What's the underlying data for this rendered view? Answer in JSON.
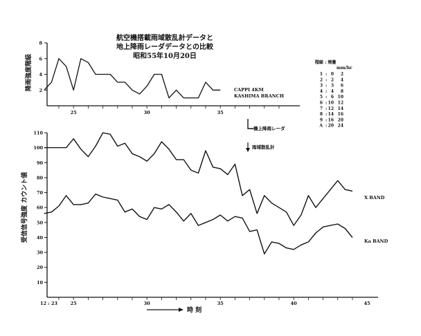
{
  "chart_data": [
    {
      "type": "line",
      "id": "top",
      "title": [
        "航空機搭載雨域散乱計データと",
        "地上降雨レーダデータとの比較",
        "昭和55年10月20日"
      ],
      "ylabel": "降雨強度階級",
      "ylim": [
        0,
        8
      ],
      "yticks": [
        "2",
        "4",
        "6",
        "8"
      ],
      "xlim": [
        23,
        40
      ],
      "xticks": [
        "25",
        "30",
        "35"
      ],
      "grid": false,
      "series": [
        {
          "name": "CAPPI 4KM KASHIMA BRANCH",
          "x": [
            23,
            23.5,
            24,
            24.5,
            25,
            25.5,
            26,
            26.5,
            27,
            27.5,
            28,
            28.5,
            29,
            29.5,
            30,
            30.5,
            31,
            31.5,
            32,
            32.5,
            33,
            33.5,
            34,
            34.5,
            35
          ],
          "values": [
            2,
            3,
            6,
            5,
            2,
            6,
            5.5,
            4,
            4,
            4,
            3,
            3,
            2,
            1.5,
            2.5,
            4,
            4,
            1,
            2,
            1,
            1,
            1,
            3,
            2,
            2
          ]
        }
      ],
      "annotations": [
        "CAPPI 4KM",
        "KASHIMA BRANCH"
      ]
    },
    {
      "type": "line",
      "id": "bottom",
      "ylabel": "受信信号強度 カウント値",
      "xlabel": "時 刻",
      "ylim": [
        0,
        110
      ],
      "yticks": [
        "10",
        "20",
        "30",
        "40",
        "50",
        "60",
        "70",
        "80",
        "90",
        "100",
        "110"
      ],
      "xlim": [
        23,
        45
      ],
      "xticks": [
        "12 : 23",
        "25",
        "30",
        "35",
        "40",
        "45"
      ],
      "grid": false,
      "series": [
        {
          "name": "X BAND",
          "x": [
            23,
            23.5,
            24,
            24.5,
            25,
            25.5,
            26,
            26.5,
            27,
            27.5,
            28,
            28.5,
            29,
            29.5,
            30,
            30.5,
            31,
            31.5,
            32,
            32.5,
            33,
            33.5,
            34,
            34.5,
            35,
            35.5,
            36,
            36.5,
            37,
            37.5,
            38,
            38.5,
            39,
            39.5,
            40,
            40.5,
            41,
            41.5,
            42,
            42.5,
            43,
            43.5,
            44
          ],
          "values": [
            100,
            100,
            100,
            100,
            106,
            99,
            94,
            101,
            110,
            109,
            101,
            103,
            96,
            94,
            91,
            96,
            104,
            99,
            92,
            92,
            85,
            83,
            98,
            87,
            86,
            82,
            89,
            68,
            72,
            56,
            68,
            63,
            60,
            57,
            48,
            55,
            68,
            60,
            66,
            72,
            78,
            72,
            71
          ]
        },
        {
          "name": "Ka BAND",
          "x": [
            23,
            23.5,
            24,
            24.5,
            25,
            25.5,
            26,
            26.5,
            27,
            27.5,
            28,
            28.5,
            29,
            29.5,
            30,
            30.5,
            31,
            31.5,
            32,
            32.5,
            33,
            33.5,
            34,
            34.5,
            35,
            35.5,
            36,
            36.5,
            37,
            37.5,
            38,
            38.5,
            39,
            39.5,
            40,
            40.5,
            41,
            41.5,
            42,
            42.5,
            43,
            43.5,
            44
          ],
          "values": [
            56,
            57,
            61,
            68,
            62,
            62,
            63,
            69,
            67,
            66,
            65,
            57,
            59,
            54,
            52,
            60,
            59,
            62,
            57,
            51,
            56,
            48,
            50,
            52,
            55,
            51,
            54,
            53,
            44,
            45,
            29,
            37,
            36,
            33,
            32,
            35,
            37,
            43,
            47,
            48,
            49,
            46,
            40
          ]
        }
      ],
      "annotations": [
        "機上降雨レーダ",
        "雨域散乱計"
      ]
    }
  ],
  "legend": {
    "header": "階級 : 雨量",
    "unit": "mm/hr",
    "rows": [
      [
        "1",
        "0",
        "2"
      ],
      [
        "2",
        "2",
        "4"
      ],
      [
        "3",
        "3",
        "6"
      ],
      [
        "4",
        "4",
        "8"
      ],
      [
        "5",
        "6",
        "10"
      ],
      [
        "6",
        "10",
        "12"
      ],
      [
        "7",
        "12",
        "14"
      ],
      [
        "8",
        "14",
        "16"
      ],
      [
        "9",
        "16",
        "20"
      ],
      [
        "A",
        "20",
        "24"
      ]
    ]
  }
}
